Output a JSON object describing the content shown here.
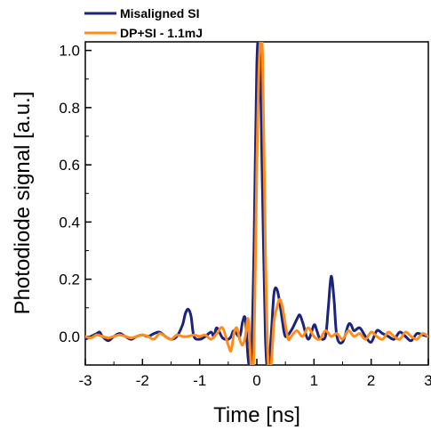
{
  "chart_data": {
    "type": "line",
    "xlabel": "Time  [ns]",
    "ylabel": "Photodiode signal [a.u.]",
    "xlim": [
      -3,
      3
    ],
    "ylim": [
      -0.1,
      1.03
    ],
    "xticks": [
      "-3",
      "-2",
      "-1",
      "0",
      "1",
      "2",
      "3"
    ],
    "yticks": [
      "0.0",
      "0.2",
      "0.4",
      "0.6",
      "0.8",
      "1.0"
    ],
    "legend_position": "top-left",
    "series": [
      {
        "name": "Misaligned SI",
        "color": "#1a237e",
        "x": [
          -3.0,
          -2.9,
          -2.8,
          -2.75,
          -2.7,
          -2.6,
          -2.5,
          -2.4,
          -2.3,
          -2.2,
          -2.1,
          -2.0,
          -1.9,
          -1.8,
          -1.7,
          -1.6,
          -1.5,
          -1.4,
          -1.3,
          -1.25,
          -1.2,
          -1.15,
          -1.1,
          -1.0,
          -0.9,
          -0.8,
          -0.75,
          -0.7,
          -0.6,
          -0.5,
          -0.45,
          -0.4,
          -0.3,
          -0.25,
          -0.2,
          -0.15,
          -0.1,
          -0.05,
          0.0,
          0.05,
          0.1,
          0.15,
          0.2,
          0.25,
          0.3,
          0.35,
          0.4,
          0.45,
          0.5,
          0.6,
          0.7,
          0.75,
          0.8,
          0.9,
          1.0,
          1.05,
          1.1,
          1.2,
          1.25,
          1.3,
          1.35,
          1.4,
          1.5,
          1.6,
          1.65,
          1.7,
          1.8,
          1.9,
          2.0,
          2.1,
          2.2,
          2.3,
          2.4,
          2.5,
          2.6,
          2.7,
          2.8,
          2.9,
          3.0
        ],
        "y": [
          -0.01,
          0.0,
          0.01,
          0.015,
          0.0,
          -0.015,
          0.0,
          0.01,
          0.0,
          -0.01,
          0.0,
          0.005,
          0.0,
          0.01,
          0.015,
          0.0,
          -0.01,
          0.0,
          0.04,
          0.08,
          0.095,
          0.07,
          0.0,
          -0.01,
          0.0,
          0.015,
          0.0,
          0.03,
          -0.005,
          -0.01,
          0.0,
          0.02,
          0.0,
          0.05,
          0.06,
          -0.08,
          -0.1,
          0.3,
          0.95,
          1.0,
          0.5,
          0.0,
          -0.12,
          0.0,
          0.15,
          0.165,
          0.12,
          0.05,
          0.0,
          0.02,
          0.06,
          0.075,
          0.05,
          -0.01,
          0.04,
          0.02,
          -0.005,
          0.0,
          0.1,
          0.21,
          0.13,
          0.0,
          -0.02,
          0.04,
          0.04,
          0.02,
          0.03,
          0.0,
          -0.02,
          0.02,
          0.01,
          0.0,
          -0.01,
          0.015,
          0.0,
          -0.015,
          0.01,
          0.005,
          0.0
        ]
      },
      {
        "name": "DP+SI - 1.1mJ",
        "color": "#ff8c1a",
        "x": [
          -3.0,
          -2.9,
          -2.8,
          -2.7,
          -2.6,
          -2.5,
          -2.4,
          -2.3,
          -2.2,
          -2.1,
          -2.0,
          -1.9,
          -1.8,
          -1.7,
          -1.6,
          -1.5,
          -1.4,
          -1.3,
          -1.2,
          -1.1,
          -1.0,
          -0.9,
          -0.8,
          -0.7,
          -0.6,
          -0.5,
          -0.45,
          -0.4,
          -0.35,
          -0.3,
          -0.25,
          -0.2,
          -0.15,
          -0.1,
          -0.05,
          0.0,
          0.05,
          0.1,
          0.15,
          0.2,
          0.25,
          0.3,
          0.35,
          0.4,
          0.45,
          0.5,
          0.55,
          0.6,
          0.7,
          0.8,
          0.9,
          1.0,
          1.1,
          1.2,
          1.3,
          1.4,
          1.5,
          1.6,
          1.7,
          1.8,
          1.9,
          2.0,
          2.1,
          2.2,
          2.3,
          2.4,
          2.5,
          2.6,
          2.7,
          2.8,
          2.9,
          3.0
        ],
        "y": [
          0.0,
          -0.005,
          0.005,
          0.0,
          -0.005,
          0.0,
          0.005,
          0.0,
          -0.005,
          0.0,
          0.005,
          0.0,
          -0.01,
          0.01,
          0.0,
          -0.01,
          0.005,
          0.0,
          0.0,
          0.005,
          0.0,
          0.005,
          -0.01,
          0.01,
          0.03,
          -0.03,
          -0.05,
          0.01,
          0.03,
          -0.01,
          -0.03,
          0.0,
          0.06,
          -0.1,
          -0.05,
          0.6,
          1.0,
          0.98,
          0.3,
          -0.1,
          -0.1,
          0.05,
          0.1,
          0.13,
          0.1,
          0.04,
          -0.01,
          0.0,
          0.02,
          0.0,
          0.03,
          0.0,
          -0.01,
          0.02,
          0.0,
          0.01,
          -0.01,
          0.02,
          0.0,
          0.01,
          -0.01,
          0.015,
          0.0,
          -0.01,
          0.015,
          0.0,
          -0.01,
          0.015,
          0.0,
          -0.01,
          0.01,
          0.0
        ]
      }
    ]
  }
}
